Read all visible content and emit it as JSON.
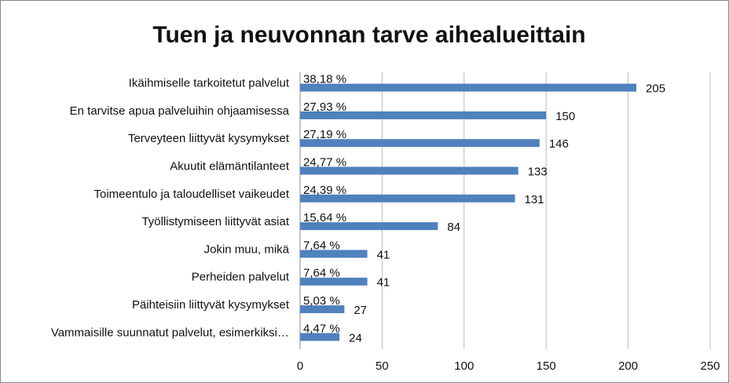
{
  "chart_data": {
    "type": "bar",
    "orientation": "horizontal",
    "title": "Tuen ja neuvonnan tarve aihealueittain",
    "categories": [
      "Ikäihmiselle tarkoitetut palvelut",
      "En tarvitse apua palveluihin ohjaamisessa",
      "Terveyteen liittyvät kysymykset",
      "Akuutit elämäntilanteet",
      "Toimeentulo ja taloudelliset vaikeudet",
      "Työllistymiseen liittyvät asiat",
      "Jokin muu, mikä",
      "Perheiden palvelut",
      "Päihteisiin liittyvät kysymykset",
      "Vammaisille suunnatut palvelut, esimerkiksi…"
    ],
    "values": [
      205,
      150,
      146,
      133,
      131,
      84,
      41,
      41,
      27,
      24
    ],
    "percent_labels": [
      "38,18 %",
      "27,93 %",
      "27,19 %",
      "24,77 %",
      "24,39 %",
      "15,64 %",
      "7,64 %",
      "7,64 %",
      "5,03 %",
      "4,47 %"
    ],
    "color": "#4f81bd",
    "xlim": [
      0,
      250
    ],
    "xticks": [
      0,
      50,
      100,
      150,
      200,
      250
    ],
    "grid": true
  }
}
